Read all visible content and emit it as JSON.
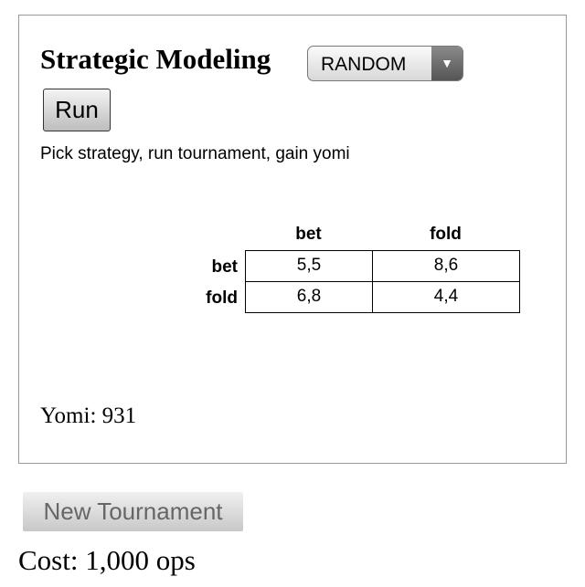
{
  "title": "Strategic Modeling",
  "strategy_select": {
    "selected": "RANDOM"
  },
  "run_label": "Run",
  "description": "Pick strategy, run tournament, gain yomi",
  "matrix": {
    "col_headers": [
      "bet",
      "fold"
    ],
    "rows": [
      {
        "label": "bet",
        "cells": [
          "5,5",
          "8,6"
        ]
      },
      {
        "label": "fold",
        "cells": [
          "6,8",
          "4,4"
        ]
      }
    ]
  },
  "yomi": "Yomi: 931",
  "new_tournament_label": "New Tournament",
  "cost": "Cost: 1,000 ops"
}
